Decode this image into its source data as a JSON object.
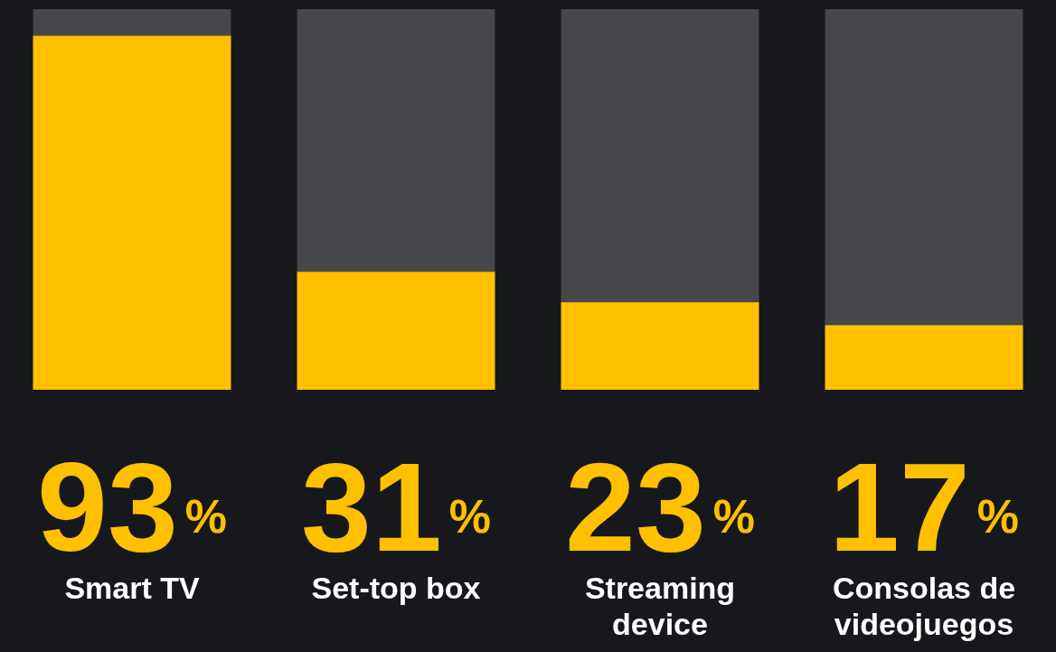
{
  "chart_data": {
    "type": "bar",
    "stacked": true,
    "categories": [
      "Smart TV",
      "Set-top box",
      "Streaming device",
      "Consolas de videojuegos"
    ],
    "series": [
      {
        "color": "#ffc000",
        "values": [
          93,
          31,
          23,
          17
        ],
        "value_labels": [
          "93%",
          "31%",
          "23%",
          "17%"
        ]
      },
      {
        "color": "#45474b",
        "values": [
          7,
          69,
          77,
          83
        ]
      }
    ],
    "ylim": [
      0,
      100
    ],
    "tick_labels": "x",
    "legend": false
  }
}
